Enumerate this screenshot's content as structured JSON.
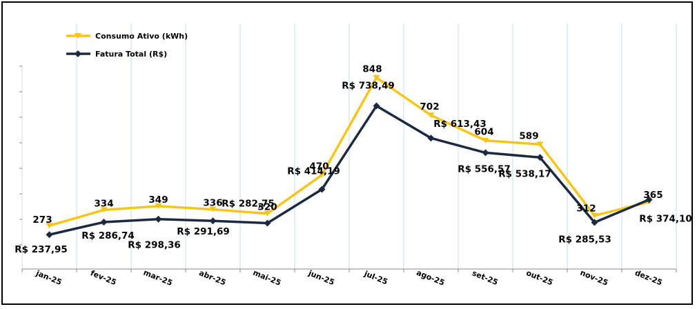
{
  "chart_data": {
    "type": "line",
    "title": "",
    "xlabel": "",
    "ylabel": "",
    "categories": [
      "jan-25",
      "fev-25",
      "mar-25",
      "abr-25",
      "mai-25",
      "jun-25",
      "jul-25",
      "ago-25",
      "set-25",
      "out-25",
      "nov-25",
      "dez-25"
    ],
    "legend_position": "top-left",
    "grid": "vertical",
    "series": [
      {
        "name": "Consumo Ativo (kWh)",
        "color": "#F5C518",
        "marker": "triangle-down",
        "values": [
          273,
          334,
          349,
          336,
          320,
          470,
          848,
          702,
          604,
          589,
          312,
          365
        ],
        "labels": [
          "273",
          "334",
          "349",
          "336",
          "320",
          "470",
          "848",
          "702",
          "604",
          "589",
          "312",
          "365"
        ],
        "ylim": [
          0,
          1000
        ]
      },
      {
        "name": "Fatura Total (R$)",
        "color": "#1B2A41",
        "marker": "diamond",
        "values": [
          237.95,
          286.74,
          298.36,
          291.69,
          282.75,
          414.19,
          738.49,
          613.43,
          556.57,
          538.17,
          285.53,
          374.1
        ],
        "labels": [
          "R$ 237,95",
          "R$ 286,74",
          "R$ 298,36",
          "R$ 291,69",
          "R$ 282,75",
          "R$ 414,19",
          "R$ 738,49",
          "R$ 613,43",
          "R$ 556,57",
          "R$ 538,17",
          "R$ 285,53",
          "R$ 374,10"
        ],
        "ylim": [
          0,
          1000
        ]
      }
    ]
  }
}
